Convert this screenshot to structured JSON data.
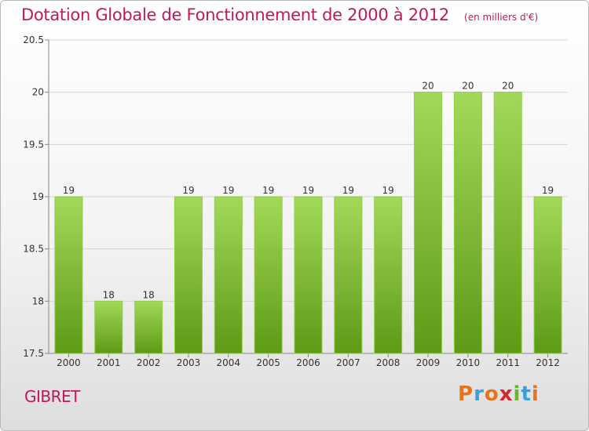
{
  "header": {
    "title": "Dotation Globale de Fonctionnement de 2000 à 2012",
    "unit": "(en milliers d'€)"
  },
  "footer": {
    "commune": "GIBRET",
    "brand": "Proxiti",
    "brand_colors": [
      "#e8731d",
      "#3aa1d8",
      "#e8731d",
      "#d9262d",
      "#6ab52e",
      "#3aa1d8",
      "#e8731d"
    ]
  },
  "colors": {
    "title": "#c2185b",
    "bar_light": "#a2d95a",
    "bar_dark": "#5e9a15",
    "grid": "#d4d4d4"
  },
  "chart_data": {
    "type": "bar",
    "categories": [
      "2000",
      "2001",
      "2002",
      "2003",
      "2004",
      "2005",
      "2006",
      "2007",
      "2008",
      "2009",
      "2010",
      "2011",
      "2012"
    ],
    "values": [
      19,
      18,
      18,
      19,
      19,
      19,
      19,
      19,
      19,
      20,
      20,
      20,
      19
    ],
    "data_labels": [
      "19",
      "18",
      "18",
      "19",
      "19",
      "19",
      "19",
      "19",
      "19",
      "20",
      "20",
      "20",
      "19"
    ],
    "ylim": [
      17.5,
      20.5
    ],
    "yticks": [
      17.5,
      18,
      18.5,
      19,
      19.5,
      20,
      20.5
    ],
    "ytick_labels": [
      "17.5",
      "18",
      "18.5",
      "19",
      "19.5",
      "20",
      "20.5"
    ],
    "grid": true,
    "xlabel": "",
    "ylabel": ""
  }
}
